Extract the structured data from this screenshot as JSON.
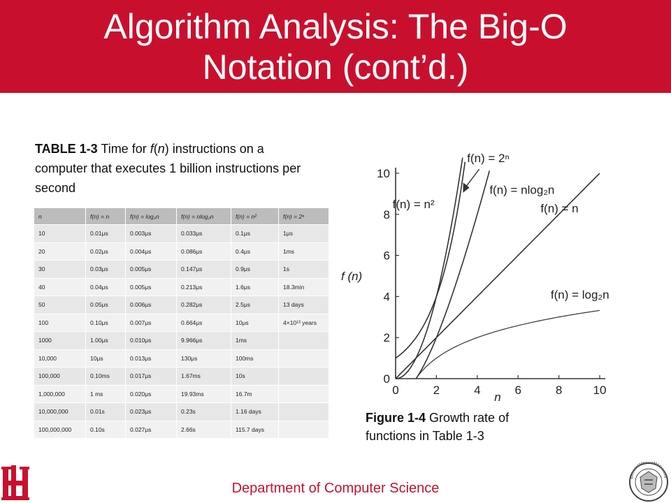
{
  "header": {
    "title_line1": "Algorithm Analysis: The Big-O",
    "title_line2": "Notation (cont’d.)",
    "bg_color": "#c8102e"
  },
  "table_caption": {
    "label": "TABLE 1-3",
    "text_1": " Time for ",
    "text_f": "f",
    "text_2": "(",
    "text_n": "n",
    "text_3": ") instructions on a computer that executes 1 billion instructions per second"
  },
  "table": {
    "headers": [
      "n",
      "f(n) = n",
      "f(n) = log₂n",
      "f(n) = nlog₂n",
      "f(n) = n²",
      "f(n) = 2ⁿ"
    ],
    "rows": [
      [
        "10",
        "0.01μs",
        "0.003μs",
        "0.033μs",
        "0.1μs",
        "1μs"
      ],
      [
        "20",
        "0.02μs",
        "0.004μs",
        "0.086μs",
        "0.4μs",
        "1ms"
      ],
      [
        "30",
        "0.03μs",
        "0.005μs",
        "0.147μs",
        "0.9μs",
        "1s"
      ],
      [
        "40",
        "0.04μs",
        "0.005μs",
        "0.213μs",
        "1.6μs",
        "18.3min"
      ],
      [
        "50",
        "0.05μs",
        "0.006μs",
        "0.282μs",
        "2.5μs",
        "13 days"
      ],
      [
        "100",
        "0.10μs",
        "0.007μs",
        "0.664μs",
        "10μs",
        "4×10¹³ years"
      ],
      [
        "1000",
        "1.00μs",
        "0.010μs",
        "9.966μs",
        "1ms",
        ""
      ],
      [
        "10,000",
        "10μs",
        "0.013μs",
        "130μs",
        "100ms",
        ""
      ],
      [
        "100,000",
        "0.10ms",
        "0.017μs",
        "1.67ms",
        "10s",
        ""
      ],
      [
        "1,000,000",
        "1 ms",
        "0.020μs",
        "19.93ms",
        "16.7m",
        ""
      ],
      [
        "10,000,000",
        "0.01s",
        "0.023μs",
        "0.23s",
        "1.16 days",
        ""
      ],
      [
        "100,000,000",
        "0.10s",
        "0.027μs",
        "2.66s",
        "115.7 days",
        ""
      ]
    ]
  },
  "chart_data": {
    "type": "line",
    "xlabel": "n",
    "ylabel": "f (n)",
    "xlim": [
      0,
      10
    ],
    "ylim": [
      0,
      10
    ],
    "xticks": [
      "0",
      "2",
      "4",
      "6",
      "8",
      "10"
    ],
    "yticks": [
      "0",
      "2",
      "4",
      "6",
      "8",
      "10"
    ],
    "grid": false,
    "legend": "labels placed next to curves",
    "series": [
      {
        "name": "f(n) = 2ⁿ",
        "function": "2^n",
        "x": [
          0,
          1,
          2,
          3,
          3.32
        ],
        "y": [
          1,
          2,
          4,
          8,
          10
        ]
      },
      {
        "name": "f(n) = n²",
        "function": "n^2",
        "x": [
          0,
          1,
          2,
          3,
          3.16
        ],
        "y": [
          0,
          1,
          4,
          9,
          10
        ]
      },
      {
        "name": "f(n) = nlog₂n",
        "function": "n*log2(n)",
        "x": [
          1,
          2,
          3,
          4,
          4.5
        ],
        "y": [
          0,
          2,
          4.75,
          8,
          9.77
        ]
      },
      {
        "name": "f(n) = n",
        "function": "n",
        "x": [
          0,
          10
        ],
        "y": [
          0,
          10
        ]
      },
      {
        "name": "f(n) = log₂n",
        "function": "log2(n)",
        "x": [
          1,
          2,
          4,
          8,
          10
        ],
        "y": [
          0,
          1,
          2,
          3,
          3.32
        ]
      }
    ]
  },
  "figure_caption": {
    "label": "Figure 1-4",
    "text": " Growth rate of functions in Table 1-3"
  },
  "footer": {
    "department": "Department of Computer Science",
    "logo_text": "UH",
    "seal_text": "UNIVERSITY OF HOUSTON · Founded 1927"
  }
}
